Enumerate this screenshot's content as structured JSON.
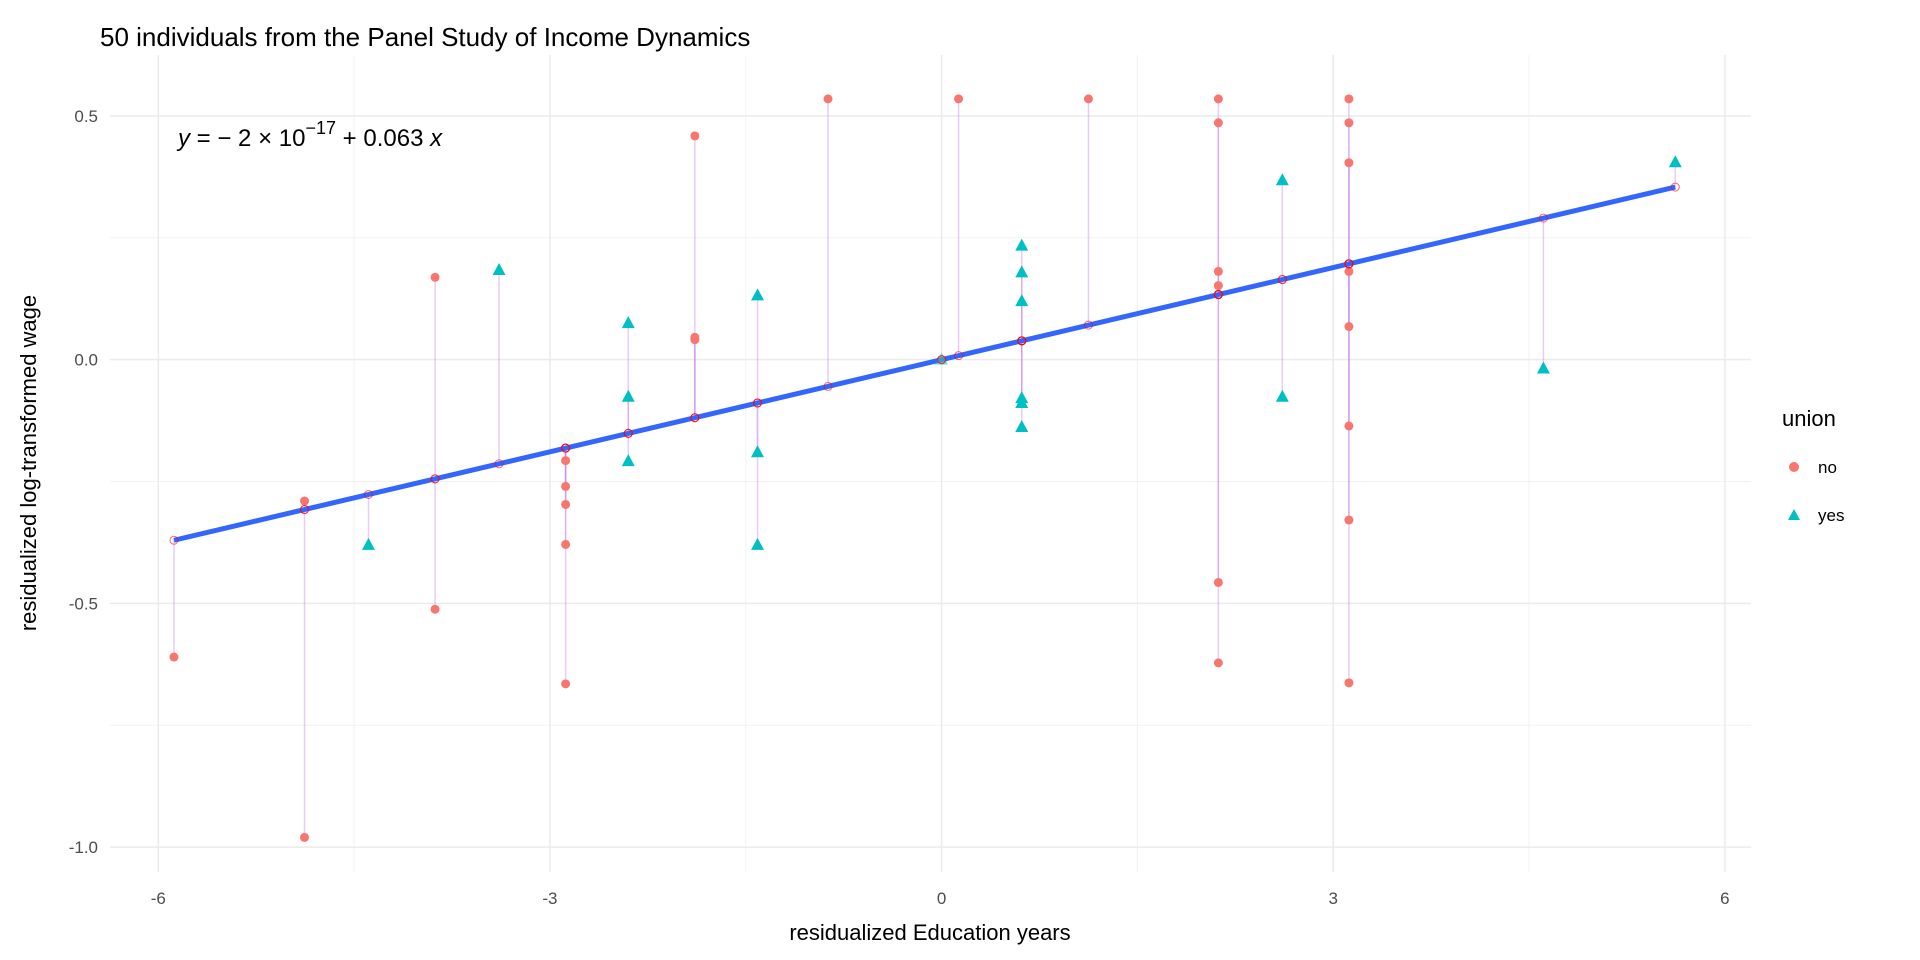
{
  "chart_data": {
    "type": "scatter",
    "title": "50 individuals from the Panel Study of Income Dynamics",
    "xlabel": "residualized Education years",
    "ylabel": "residualized log-transformed wage",
    "xlim": [
      -6.37,
      6.2
    ],
    "ylim": [
      -1.051,
      0.625
    ],
    "x_ticks": [
      -6,
      -3,
      0,
      3,
      6
    ],
    "x_tick_labels": [
      "-6",
      "-3",
      "0",
      "3",
      "6"
    ],
    "y_ticks": [
      0.5,
      0.0,
      -0.5,
      -1.0
    ],
    "y_tick_labels": [
      "0.5",
      "0.0",
      "-0.5",
      "-1.0"
    ],
    "grid": true,
    "equation": {
      "lhs": "y",
      "intercept_mantissa": "2",
      "intercept_exp": "−17",
      "slope": "0.063",
      "var": "x",
      "intercept": -2e-17,
      "slope_value": 0.063
    },
    "fit_line": {
      "color": "#3366FF",
      "x_range": [
        -5.88,
        5.62
      ]
    },
    "legend": {
      "title": "union",
      "position": "right",
      "entries": [
        {
          "label": "no",
          "color": "#F8766D",
          "shape": "circle"
        },
        {
          "label": "yes",
          "color": "#00BFC4",
          "shape": "triangle"
        }
      ]
    },
    "series": [
      {
        "name": "no",
        "color": "#F8766D",
        "shape": "circle",
        "points": [
          [
            -5.88,
            -0.61
          ],
          [
            -4.88,
            -0.29
          ],
          [
            -4.88,
            -0.98
          ],
          [
            -3.88,
            0.169
          ],
          [
            -3.88,
            -0.512
          ],
          [
            -2.88,
            -0.207
          ],
          [
            -2.88,
            -0.26
          ],
          [
            -2.88,
            -0.297
          ],
          [
            -2.88,
            -0.379
          ],
          [
            -2.88,
            -0.665
          ],
          [
            -1.89,
            0.459
          ],
          [
            -1.89,
            0.046
          ],
          [
            -1.89,
            0.041
          ],
          [
            -0.87,
            0.535
          ],
          [
            0.0,
            0.0
          ],
          [
            0.13,
            0.535
          ],
          [
            1.125,
            0.535
          ],
          [
            2.12,
            0.535
          ],
          [
            2.12,
            0.486
          ],
          [
            2.12,
            0.181
          ],
          [
            2.12,
            0.152
          ],
          [
            2.12,
            -0.457
          ],
          [
            2.12,
            -0.622
          ],
          [
            3.12,
            0.535
          ],
          [
            3.12,
            0.486
          ],
          [
            3.12,
            0.404
          ],
          [
            3.12,
            0.181
          ],
          [
            3.12,
            0.068
          ],
          [
            3.12,
            -0.136
          ],
          [
            3.12,
            -0.329
          ],
          [
            3.12,
            -0.663
          ]
        ]
      },
      {
        "name": "yes",
        "color": "#00BFC4",
        "shape": "triangle",
        "points": [
          [
            -4.39,
            -0.38
          ],
          [
            -3.39,
            0.184
          ],
          [
            -2.4,
            0.075
          ],
          [
            -2.4,
            -0.076
          ],
          [
            -2.4,
            -0.208
          ],
          [
            -1.41,
            0.132
          ],
          [
            -1.41,
            -0.19
          ],
          [
            -1.41,
            -0.38
          ],
          [
            0.0,
            0.0
          ],
          [
            0.614,
            0.234
          ],
          [
            0.614,
            0.179
          ],
          [
            0.614,
            0.12
          ],
          [
            0.614,
            -0.079
          ],
          [
            0.614,
            -0.089
          ],
          [
            0.614,
            -0.138
          ],
          [
            2.61,
            0.368
          ],
          [
            2.61,
            -0.076
          ],
          [
            4.61,
            -0.018
          ],
          [
            5.62,
            0.405
          ]
        ]
      }
    ]
  }
}
